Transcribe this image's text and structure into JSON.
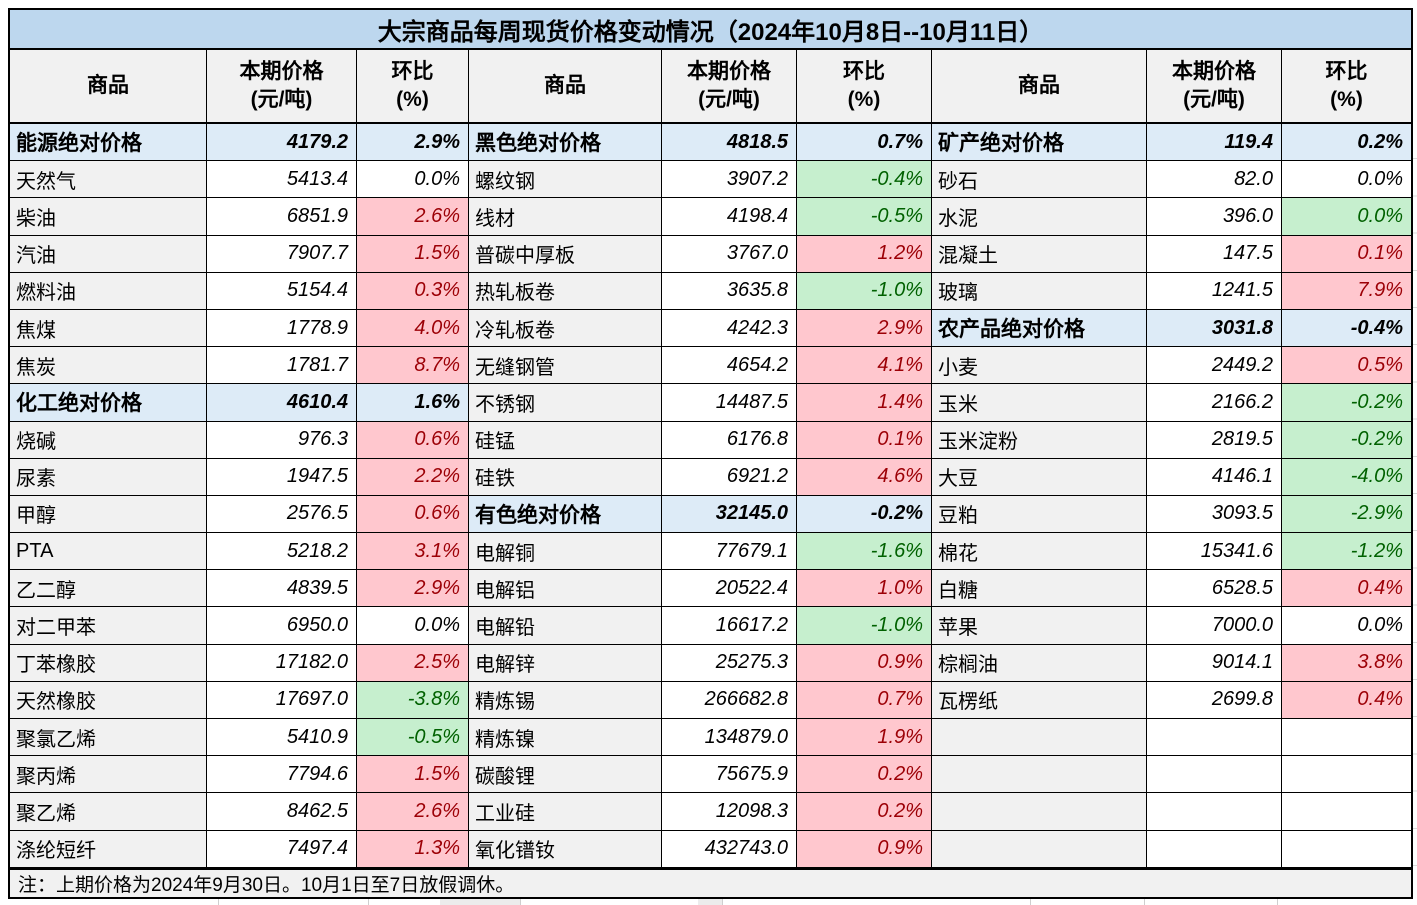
{
  "title": "大宗商品每周现货价格变动情况（2024年10月8日--10月11日）",
  "note": "注：上期价格为2024年9月30日。10月1日至7日放假调休。",
  "header": {
    "commodity": "商品",
    "price_line1": "本期价格",
    "price_line2": "(元/吨)",
    "pct_line1": "环比",
    "pct_line2": "(%)"
  },
  "colors": {
    "title_bg": "#BDD7EE",
    "category_bg": "#DDEBF7",
    "cell_bg": "#F1F1F1",
    "positive_bg": "#FFC7CE",
    "positive_text": "#9C0006",
    "negative_bg": "#C6EFCE",
    "negative_text": "#006100"
  },
  "groups": [
    {
      "rows": [
        {
          "kind": "cat",
          "name": "能源绝对价格",
          "price": "4179.2",
          "pct": "2.9%"
        },
        {
          "kind": "item",
          "tone": "flat",
          "name": "天然气",
          "price": "5413.4",
          "pct": "0.0%"
        },
        {
          "kind": "item",
          "tone": "up",
          "name": "柴油",
          "price": "6851.9",
          "pct": "2.6%"
        },
        {
          "kind": "item",
          "tone": "up",
          "name": "汽油",
          "price": "7907.7",
          "pct": "1.5%"
        },
        {
          "kind": "item",
          "tone": "up",
          "name": "燃料油",
          "price": "5154.4",
          "pct": "0.3%"
        },
        {
          "kind": "item",
          "tone": "up",
          "name": "焦煤",
          "price": "1778.9",
          "pct": "4.0%"
        },
        {
          "kind": "item",
          "tone": "up",
          "name": "焦炭",
          "price": "1781.7",
          "pct": "8.7%"
        },
        {
          "kind": "cat",
          "name": "化工绝对价格",
          "price": "4610.4",
          "pct": "1.6%"
        },
        {
          "kind": "item",
          "tone": "up",
          "name": "烧碱",
          "price": "976.3",
          "pct": "0.6%"
        },
        {
          "kind": "item",
          "tone": "up",
          "name": "尿素",
          "price": "1947.5",
          "pct": "2.2%"
        },
        {
          "kind": "item",
          "tone": "up",
          "name": "甲醇",
          "price": "2576.5",
          "pct": "0.6%"
        },
        {
          "kind": "item",
          "tone": "up",
          "name": "PTA",
          "price": "5218.2",
          "pct": "3.1%"
        },
        {
          "kind": "item",
          "tone": "up",
          "name": "乙二醇",
          "price": "4839.5",
          "pct": "2.9%"
        },
        {
          "kind": "item",
          "tone": "flat",
          "name": "对二甲苯",
          "price": "6950.0",
          "pct": "0.0%"
        },
        {
          "kind": "item",
          "tone": "up",
          "name": "丁苯橡胶",
          "price": "17182.0",
          "pct": "2.5%"
        },
        {
          "kind": "item",
          "tone": "dn",
          "name": "天然橡胶",
          "price": "17697.0",
          "pct": "-3.8%"
        },
        {
          "kind": "item",
          "tone": "dn",
          "name": "聚氯乙烯",
          "price": "5410.9",
          "pct": "-0.5%"
        },
        {
          "kind": "item",
          "tone": "up",
          "name": "聚丙烯",
          "price": "7794.6",
          "pct": "1.5%"
        },
        {
          "kind": "item",
          "tone": "up",
          "name": "聚乙烯",
          "price": "8462.5",
          "pct": "2.6%"
        },
        {
          "kind": "item",
          "tone": "up",
          "name": "涤纶短纤",
          "price": "7497.4",
          "pct": "1.3%"
        }
      ]
    },
    {
      "rows": [
        {
          "kind": "cat",
          "name": "黑色绝对价格",
          "price": "4818.5",
          "pct": "0.7%"
        },
        {
          "kind": "item",
          "tone": "dn",
          "name": "螺纹钢",
          "price": "3907.2",
          "pct": "-0.4%"
        },
        {
          "kind": "item",
          "tone": "dn",
          "name": "线材",
          "price": "4198.4",
          "pct": "-0.5%"
        },
        {
          "kind": "item",
          "tone": "up",
          "name": "普碳中厚板",
          "price": "3767.0",
          "pct": "1.2%"
        },
        {
          "kind": "item",
          "tone": "dn",
          "name": "热轧板卷",
          "price": "3635.8",
          "pct": "-1.0%"
        },
        {
          "kind": "item",
          "tone": "up",
          "name": "冷轧板卷",
          "price": "4242.3",
          "pct": "2.9%"
        },
        {
          "kind": "item",
          "tone": "up",
          "name": "无缝钢管",
          "price": "4654.2",
          "pct": "4.1%"
        },
        {
          "kind": "item",
          "tone": "up",
          "name": "不锈钢",
          "price": "14487.5",
          "pct": "1.4%"
        },
        {
          "kind": "item",
          "tone": "up",
          "name": "硅锰",
          "price": "6176.8",
          "pct": "0.1%"
        },
        {
          "kind": "item",
          "tone": "up",
          "name": "硅铁",
          "price": "6921.2",
          "pct": "4.6%"
        },
        {
          "kind": "cat",
          "name": "有色绝对价格",
          "price": "32145.0",
          "pct": "-0.2%"
        },
        {
          "kind": "item",
          "tone": "dn",
          "name": "电解铜",
          "price": "77679.1",
          "pct": "-1.6%"
        },
        {
          "kind": "item",
          "tone": "up",
          "name": "电解铝",
          "price": "20522.4",
          "pct": "1.0%"
        },
        {
          "kind": "item",
          "tone": "dn",
          "name": "电解铅",
          "price": "16617.2",
          "pct": "-1.0%"
        },
        {
          "kind": "item",
          "tone": "up",
          "name": "电解锌",
          "price": "25275.3",
          "pct": "0.9%"
        },
        {
          "kind": "item",
          "tone": "up",
          "name": "精炼锡",
          "price": "266682.8",
          "pct": "0.7%"
        },
        {
          "kind": "item",
          "tone": "up",
          "name": "精炼镍",
          "price": "134879.0",
          "pct": "1.9%"
        },
        {
          "kind": "item",
          "tone": "up",
          "name": "碳酸锂",
          "price": "75675.9",
          "pct": "0.2%"
        },
        {
          "kind": "item",
          "tone": "up",
          "name": "工业硅",
          "price": "12098.3",
          "pct": "0.2%"
        },
        {
          "kind": "item",
          "tone": "up",
          "name": "氧化镨钕",
          "price": "432743.0",
          "pct": "0.9%"
        }
      ]
    },
    {
      "rows": [
        {
          "kind": "cat",
          "name": "矿产绝对价格",
          "price": "119.4",
          "pct": "0.2%"
        },
        {
          "kind": "item",
          "tone": "flat",
          "name": "砂石",
          "price": "82.0",
          "pct": "0.0%"
        },
        {
          "kind": "item",
          "tone": "dn",
          "name": "水泥",
          "price": "396.0",
          "pct": "0.0%"
        },
        {
          "kind": "item",
          "tone": "up",
          "name": "混凝土",
          "price": "147.5",
          "pct": "0.1%"
        },
        {
          "kind": "item",
          "tone": "up",
          "name": "玻璃",
          "price": "1241.5",
          "pct": "7.9%"
        },
        {
          "kind": "cat",
          "name": "农产品绝对价格",
          "price": "3031.8",
          "pct": "-0.4%"
        },
        {
          "kind": "item",
          "tone": "up",
          "name": "小麦",
          "price": "2449.2",
          "pct": "0.5%"
        },
        {
          "kind": "item",
          "tone": "dn",
          "name": "玉米",
          "price": "2166.2",
          "pct": "-0.2%"
        },
        {
          "kind": "item",
          "tone": "dn",
          "name": "玉米淀粉",
          "price": "2819.5",
          "pct": "-0.2%"
        },
        {
          "kind": "item",
          "tone": "dn",
          "name": "大豆",
          "price": "4146.1",
          "pct": "-4.0%"
        },
        {
          "kind": "item",
          "tone": "dn",
          "name": "豆粕",
          "price": "3093.5",
          "pct": "-2.9%"
        },
        {
          "kind": "item",
          "tone": "dn",
          "name": "棉花",
          "price": "15341.6",
          "pct": "-1.2%"
        },
        {
          "kind": "item",
          "tone": "up",
          "name": "白糖",
          "price": "6528.5",
          "pct": "0.4%"
        },
        {
          "kind": "item",
          "tone": "flat",
          "name": "苹果",
          "price": "7000.0",
          "pct": "0.0%"
        },
        {
          "kind": "item",
          "tone": "up",
          "name": "棕榈油",
          "price": "9014.1",
          "pct": "3.8%"
        },
        {
          "kind": "item",
          "tone": "up",
          "name": "瓦楞纸",
          "price": "2699.8",
          "pct": "0.4%"
        },
        {
          "kind": "empty",
          "name": "",
          "price": "",
          "pct": ""
        },
        {
          "kind": "empty",
          "name": "",
          "price": "",
          "pct": ""
        },
        {
          "kind": "empty",
          "name": "",
          "price": "",
          "pct": ""
        },
        {
          "kind": "empty",
          "name": "",
          "price": "",
          "pct": ""
        }
      ]
    }
  ]
}
